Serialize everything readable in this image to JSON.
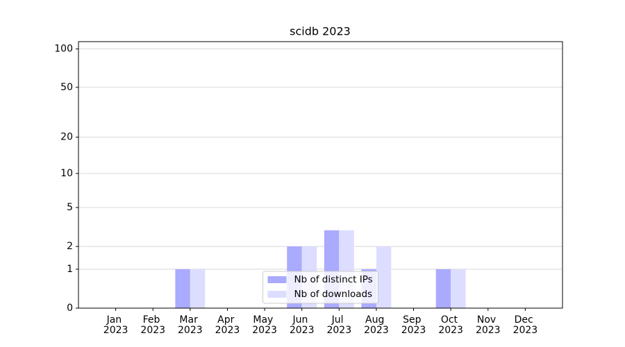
{
  "chart_data": {
    "type": "bar",
    "title": "scidb 2023",
    "categories": [
      "Jan 2023",
      "Feb 2023",
      "Mar 2023",
      "Apr 2023",
      "May 2023",
      "Jun 2023",
      "Jul 2023",
      "Aug 2023",
      "Sep 2023",
      "Oct 2023",
      "Nov 2023",
      "Dec 2023"
    ],
    "series": [
      {
        "name": "Nb of distinct IPs",
        "color": "#aaaaff",
        "values": [
          0,
          0,
          1,
          0,
          0,
          2,
          3,
          1,
          0,
          1,
          0,
          0
        ]
      },
      {
        "name": "Nb of downloads",
        "color": "#ddddff",
        "values": [
          0,
          0,
          1,
          0,
          0,
          2,
          3,
          2,
          0,
          1,
          0,
          0
        ]
      }
    ],
    "yscale": "log1p",
    "ylim": [
      0,
      114
    ],
    "yticks": [
      0,
      1,
      2,
      5,
      10,
      20,
      50,
      100
    ],
    "grid": true,
    "legend": "lower center"
  }
}
